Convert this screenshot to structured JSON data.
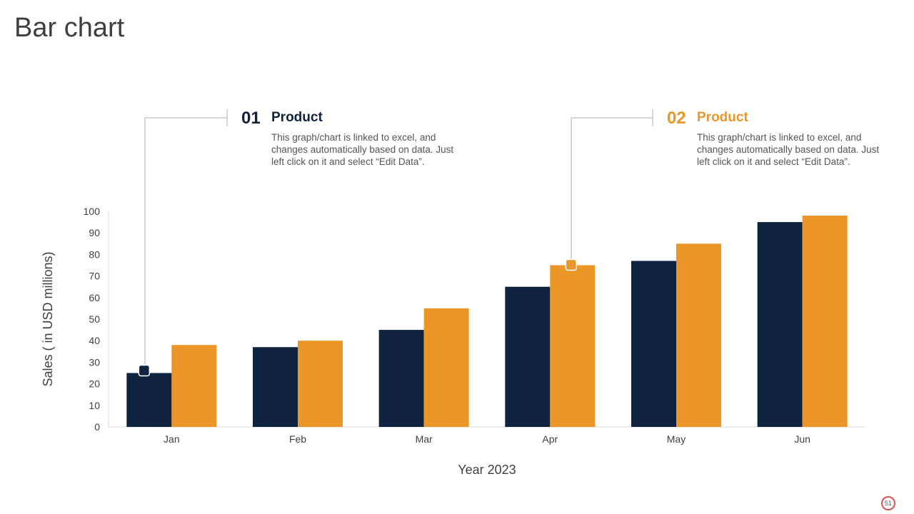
{
  "slide": {
    "title": "Bar chart",
    "page_number": "51"
  },
  "colors": {
    "series1": "#0f2341",
    "series2": "#ea9628",
    "text": "#404040",
    "gridline": "#d9d9d9"
  },
  "callouts": [
    {
      "number": "01",
      "heading": "Product",
      "description": "This graph/chart is linked to excel, and changes automatically based on data. Just left click on it and select “Edit Data”."
    },
    {
      "number": "02",
      "heading": "Product",
      "description": "This graph/chart is linked to excel, and changes automatically based on data. Just left click on it and select “Edit Data”."
    }
  ],
  "chart_data": {
    "type": "bar",
    "categories": [
      "Jan",
      "Feb",
      "Mar",
      "Apr",
      "May",
      "Jun"
    ],
    "series": [
      {
        "values": [
          25,
          37,
          45,
          65,
          77,
          95
        ]
      },
      {
        "values": [
          38,
          40,
          55,
          75,
          85,
          98
        ]
      }
    ],
    "xlabel": "Year 2023",
    "ylabel": "Sales ( in USD millions)",
    "ylim": [
      0,
      100
    ],
    "yticks": [
      0,
      10,
      20,
      30,
      40,
      50,
      60,
      70,
      80,
      90,
      100
    ],
    "grid": false,
    "legend": "none"
  }
}
